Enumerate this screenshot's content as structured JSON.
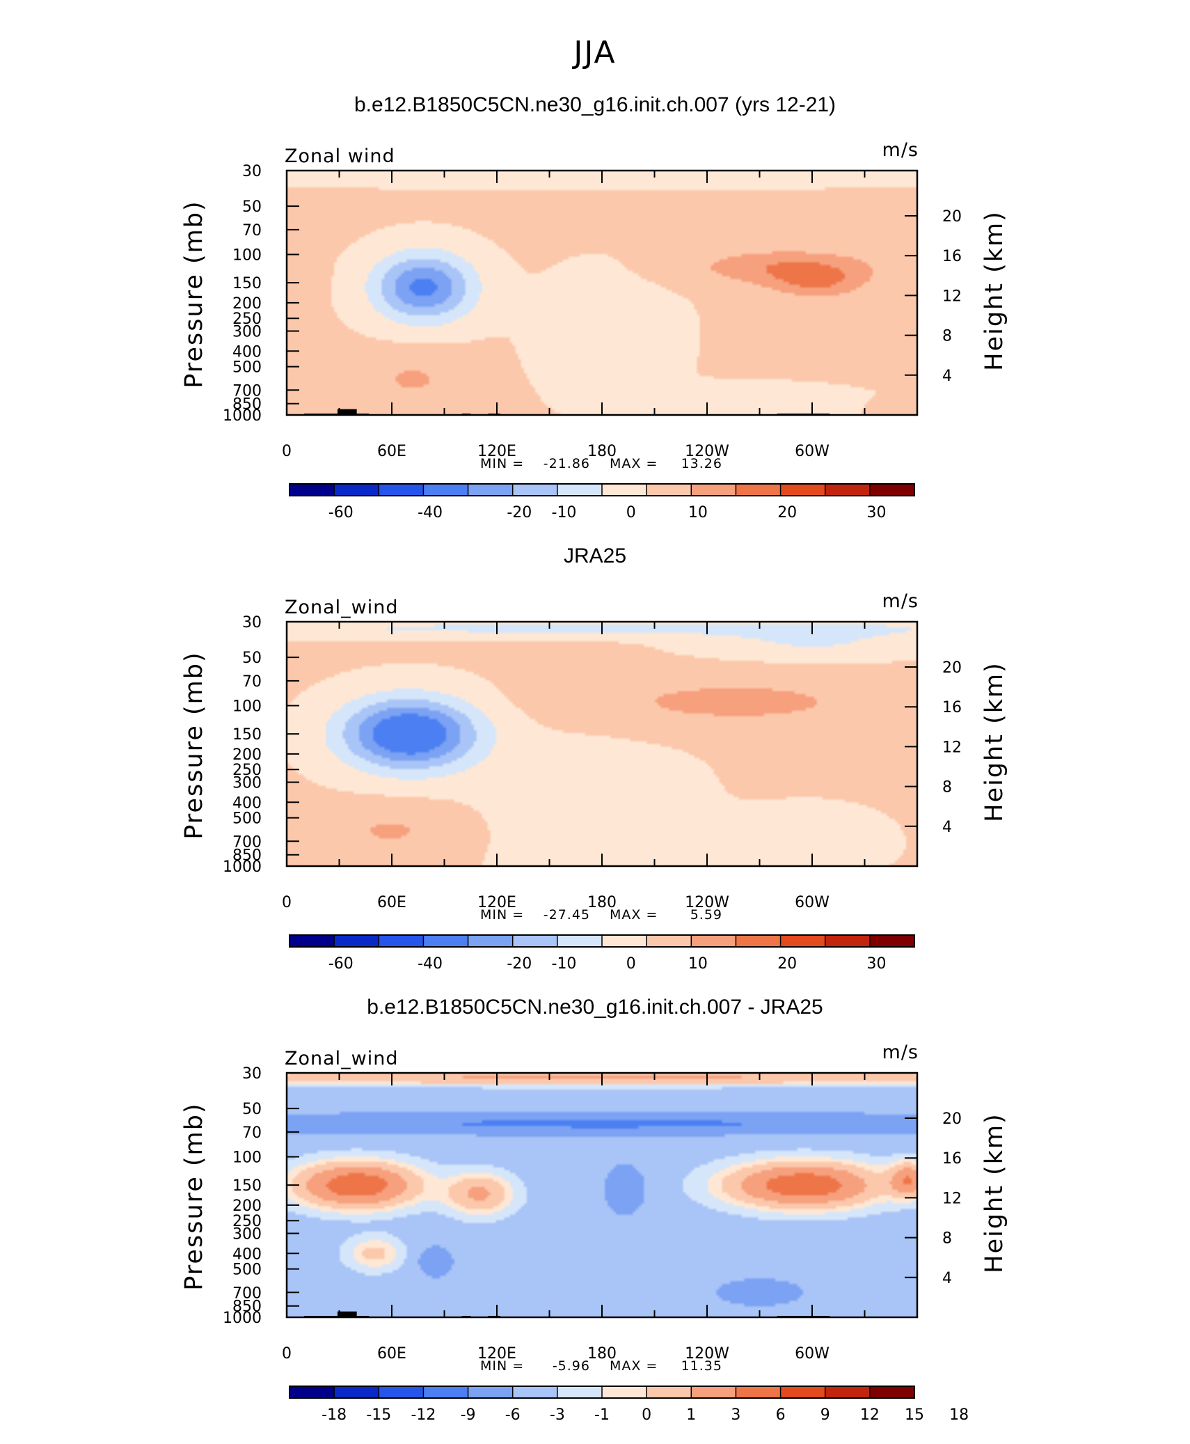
{
  "figure": {
    "title": "JJA"
  },
  "panels": [
    {
      "id": "model",
      "title": "b.e12.B1850C5CN.ne30_g16.init.ch.007 (yrs 12-21)",
      "variable_label": "Zonal wind",
      "units_label": "m/s",
      "stats": {
        "min_label": "MIN =",
        "min": "-21.86",
        "max_label": "MAX =",
        "max": "13.26"
      },
      "colorbar": [
        "-60",
        "-40",
        "-20",
        "-10",
        "0",
        "10",
        "20",
        "30"
      ]
    },
    {
      "id": "obs",
      "title": "JRA25",
      "variable_label": "Zonal_wind",
      "units_label": "m/s",
      "stats": {
        "min_label": "MIN =",
        "min": "-27.45",
        "max_label": "MAX =",
        "max": "5.59"
      },
      "colorbar": [
        "-60",
        "-40",
        "-20",
        "-10",
        "0",
        "10",
        "20",
        "30"
      ]
    },
    {
      "id": "diff",
      "title": "b.e12.B1850C5CN.ne30_g16.init.ch.007 - JRA25",
      "variable_label": "Zonal_wind",
      "units_label": "m/s",
      "stats": {
        "min_label": "MIN =",
        "min": "-5.96",
        "max_label": "MAX =",
        "max": "11.35"
      },
      "colorbar": [
        "-18",
        "-15",
        "-12",
        "-9",
        "-6",
        "-3",
        "-1",
        "0",
        "1",
        "3",
        "6",
        "9",
        "12",
        "15",
        "18"
      ]
    }
  ],
  "colors": {
    "scale": [
      "#00008b",
      "#0b29c6",
      "#2655ea",
      "#4c7ff2",
      "#7ba2f3",
      "#a9c4f6",
      "#d5e6fb",
      "#fee8d5",
      "#fcc8ac",
      "#f6a07d",
      "#ee7548",
      "#e34a1e",
      "#c2250d",
      "#7e0000"
    ]
  },
  "chart_data": {
    "type": "heatmap",
    "x_ticks": [
      "0",
      "60E",
      "120E",
      "180",
      "120W",
      "60W"
    ],
    "x_range": [
      0,
      360
    ],
    "y_axis": {
      "label": "Pressure (mb)",
      "scale": "log",
      "reversed": true,
      "range": [
        1000,
        30
      ],
      "ticks": [
        30,
        50,
        70,
        100,
        150,
        200,
        250,
        300,
        400,
        500,
        700,
        850,
        1000
      ]
    },
    "y2_axis": {
      "label": "Height (km)",
      "ticks": [
        4,
        8,
        12,
        16,
        20
      ]
    },
    "panels": [
      {
        "title": "b.e12.B1850C5CN.ne30_g16.init.ch.007 (yrs 12-21)",
        "min": -21.86,
        "max": 13.26,
        "levels": [
          -70,
          -60,
          -50,
          -40,
          -30,
          -20,
          -15,
          -10,
          -5,
          0,
          5,
          10,
          15,
          20,
          25,
          30,
          35
        ],
        "background": 0.5,
        "features": [
          {
            "lon": 180,
            "p": 34,
            "dlon": 250,
            "dlogp": 0.05,
            "amp": -2.5
          },
          {
            "lon": 78,
            "p": 160,
            "dlon": 28,
            "dlogp": 0.21,
            "amp": -22
          },
          {
            "lon": 183,
            "p": 320,
            "dlon": 40,
            "dlogp": 0.4,
            "amp": -3
          },
          {
            "lon": 285,
            "p": 120,
            "dlon": 52,
            "dlogp": 0.11,
            "amp": 9
          },
          {
            "lon": 303,
            "p": 150,
            "dlon": 26,
            "dlogp": 0.1,
            "amp": 8
          },
          {
            "lon": 72,
            "p": 600,
            "dlon": 30,
            "dlogp": 0.17,
            "amp": 5
          },
          {
            "lon": 10,
            "p": 140,
            "dlon": 9,
            "dlogp": 0.12,
            "amp": 4
          },
          {
            "lon": 265,
            "p": 850,
            "dlon": 55,
            "dlogp": 0.1,
            "amp": -5
          },
          {
            "lon": 345,
            "p": 900,
            "dlon": 12,
            "dlogp": 0.05,
            "amp": 4
          }
        ]
      },
      {
        "title": "JRA25",
        "min": -27.45,
        "max": 5.59,
        "levels": [
          -70,
          -60,
          -50,
          -40,
          -30,
          -20,
          -15,
          -10,
          -5,
          0,
          5,
          10,
          15,
          20,
          25,
          30,
          35
        ],
        "background": 0.5,
        "features": [
          {
            "lon": 180,
            "p": 33,
            "dlon": 250,
            "dlogp": 0.05,
            "amp": -7
          },
          {
            "lon": 70,
            "p": 150,
            "dlon": 38,
            "dlogp": 0.22,
            "amp": -28
          },
          {
            "lon": 170,
            "p": 450,
            "dlon": 60,
            "dlogp": 0.45,
            "amp": -3
          },
          {
            "lon": 255,
            "p": 95,
            "dlon": 90,
            "dlogp": 0.16,
            "amp": 6
          },
          {
            "lon": 300,
            "p": 40,
            "dlon": 60,
            "dlogp": 0.1,
            "amp": -6
          },
          {
            "lon": 60,
            "p": 600,
            "dlon": 40,
            "dlogp": 0.16,
            "amp": 5
          },
          {
            "lon": 300,
            "p": 700,
            "dlon": 40,
            "dlogp": 0.2,
            "amp": -3
          }
        ]
      },
      {
        "title": "b.e12.B1850C5CN.ne30_g16.init.ch.007 - JRA25",
        "min": -5.96,
        "max": 11.35,
        "levels": [
          -21,
          -18,
          -15,
          -12,
          -9,
          -6,
          -3,
          -1,
          0,
          1,
          3,
          6,
          9,
          12,
          15,
          18,
          21
        ],
        "background": -1.5,
        "features": [
          {
            "lon": 180,
            "p": 32,
            "dlon": 250,
            "dlogp": 0.045,
            "amp": 5
          },
          {
            "lon": 180,
            "p": 62,
            "dlon": 250,
            "dlogp": 0.07,
            "amp": -5
          },
          {
            "lon": 40,
            "p": 150,
            "dlon": 32,
            "dlogp": 0.13,
            "amp": 10
          },
          {
            "lon": 110,
            "p": 170,
            "dlon": 18,
            "dlogp": 0.12,
            "amp": 5
          },
          {
            "lon": 295,
            "p": 150,
            "dlon": 40,
            "dlogp": 0.13,
            "amp": 10
          },
          {
            "lon": 355,
            "p": 140,
            "dlon": 10,
            "dlogp": 0.1,
            "amp": 7
          },
          {
            "lon": 193,
            "p": 160,
            "dlon": 12,
            "dlogp": 0.16,
            "amp": -4
          },
          {
            "lon": 85,
            "p": 450,
            "dlon": 10,
            "dlogp": 0.1,
            "amp": -4
          },
          {
            "lon": 50,
            "p": 400,
            "dlon": 15,
            "dlogp": 0.1,
            "amp": 3
          },
          {
            "lon": 270,
            "p": 700,
            "dlon": 30,
            "dlogp": 0.1,
            "amp": -3
          }
        ]
      }
    ]
  }
}
